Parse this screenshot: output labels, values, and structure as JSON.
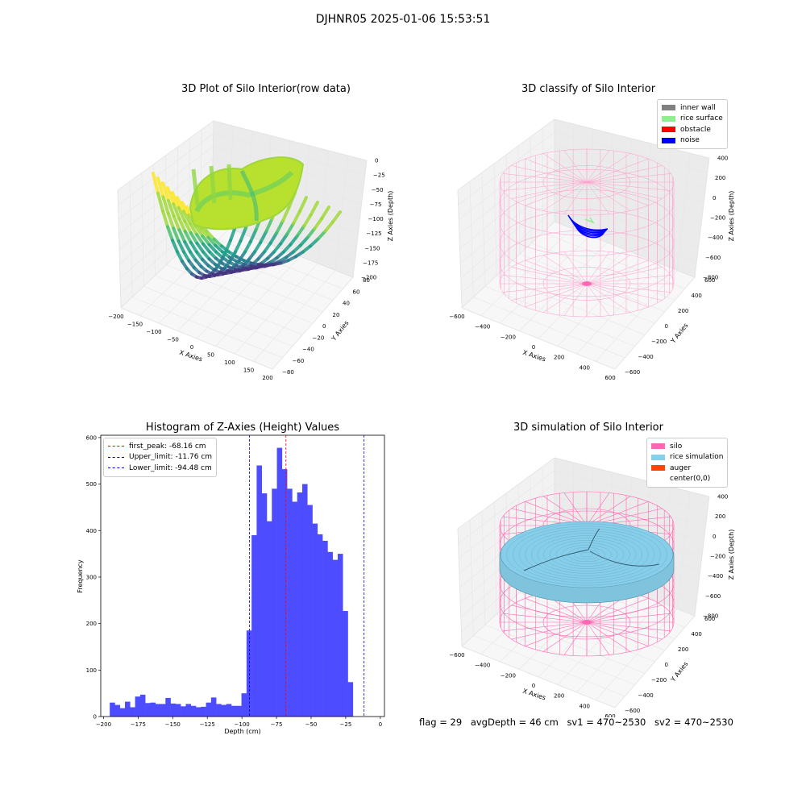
{
  "figure": {
    "suptitle": "DJHNR05 2025-01-06 15:53:51",
    "footer": {
      "flag": "flag = 29",
      "avg_depth": "avgDepth = 46 cm",
      "sv1": "sv1 = 470~2530",
      "sv2": "sv2 = 470~2530"
    }
  },
  "colors": {
    "inner_wall": "#808080",
    "rice_surface": "#90ee90",
    "obstacle": "#ff0000",
    "noise": "#0000ff",
    "silo": "#ff69b4",
    "rice_simulation": "#87ceeb",
    "auger": "#ff4500",
    "histogram_bar": "#4d4dff"
  },
  "chart_data": [
    {
      "type": "scatter",
      "title": "3D Plot of Silo Interior(row data)",
      "xlabel": "X Axies",
      "ylabel": "Y Axies",
      "zlabel": "Z Axies (Depth)",
      "xticks": [
        "−200",
        "−150",
        "−100",
        "−50",
        "0",
        "50",
        "100",
        "150",
        "200"
      ],
      "yticks": [
        "−80",
        "−60",
        "−40",
        "−20",
        "0",
        "20",
        "40",
        "60",
        "80"
      ],
      "zticks": [
        "0",
        "−25",
        "−50",
        "−75",
        "−100",
        "−125",
        "−150",
        "−175",
        "−200"
      ],
      "xlim": [
        -200,
        200
      ],
      "ylim": [
        -80,
        80
      ],
      "zlim": [
        -200,
        0
      ],
      "colormap": "viridis"
    },
    {
      "type": "scatter",
      "title": "3D classify of Silo Interior",
      "xlabel": "X Axies",
      "ylabel": "Y Axies",
      "zlabel": "Z Axies (Depth)",
      "xticks": [
        "−600",
        "−400",
        "−200",
        "0",
        "200",
        "400",
        "600"
      ],
      "yticks": [
        "−600",
        "−400",
        "−200",
        "0",
        "200",
        "400",
        "600"
      ],
      "zticks": [
        "400",
        "200",
        "0",
        "−200",
        "−400",
        "−600",
        "−800"
      ],
      "legend": [
        "inner wall",
        "rice surface",
        "obstacle",
        "noise"
      ],
      "legend_loc": "upper right"
    },
    {
      "type": "bar",
      "title": "Histogram of Z-Axies (Height) Values",
      "xlabel": "Depth (cm)",
      "ylabel": "Frequency",
      "xlim": [
        -202,
        3
      ],
      "ylim": [
        0,
        605
      ],
      "xticks": [
        -200,
        -175,
        -150,
        -125,
        -100,
        -75,
        -50,
        -25,
        0
      ],
      "xtick_labels": [
        "−200",
        "−175",
        "−150",
        "−125",
        "−100",
        "−75",
        "−50",
        "−25",
        "0"
      ],
      "yticks": [
        0,
        100,
        200,
        300,
        400,
        500,
        600
      ],
      "bin_start": -195.5,
      "bin_width": 3.66,
      "values": [
        30,
        25,
        18,
        32,
        20,
        43,
        47,
        29,
        30,
        27,
        27,
        40,
        28,
        27,
        22,
        27,
        23,
        20,
        21,
        30,
        41,
        27,
        25,
        27,
        23,
        23,
        50,
        185,
        390,
        540,
        480,
        420,
        490,
        578,
        532,
        490,
        462,
        482,
        500,
        455,
        415,
        392,
        378,
        354,
        337,
        350,
        227,
        74
      ],
      "vlines": [
        {
          "label": "first_peak: -68.16 cm",
          "x": -68.16,
          "color": "#ff0000"
        },
        {
          "label": "Upper_limit: -11.76 cm",
          "x": -11.76,
          "color": "#0000cc"
        },
        {
          "label": "Lower_limit: -94.48 cm",
          "x": -94.48,
          "color": "#0000cc"
        }
      ],
      "legend_loc": "upper left"
    },
    {
      "type": "scatter",
      "title": "3D simulation of Silo Interior",
      "xlabel": "X Axies",
      "ylabel": "Y Axies",
      "zlabel": "Z Axies (Depth)",
      "xticks": [
        "−600",
        "−400",
        "−200",
        "0",
        "200",
        "400",
        "600"
      ],
      "yticks": [
        "−600",
        "−400",
        "−200",
        "0",
        "200",
        "400",
        "600"
      ],
      "zticks": [
        "400",
        "200",
        "0",
        "−200",
        "−400",
        "−600",
        "−800"
      ],
      "legend": [
        "silo",
        "rice simulation",
        "auger",
        "center(0,0)"
      ],
      "legend_loc": "upper right"
    }
  ]
}
